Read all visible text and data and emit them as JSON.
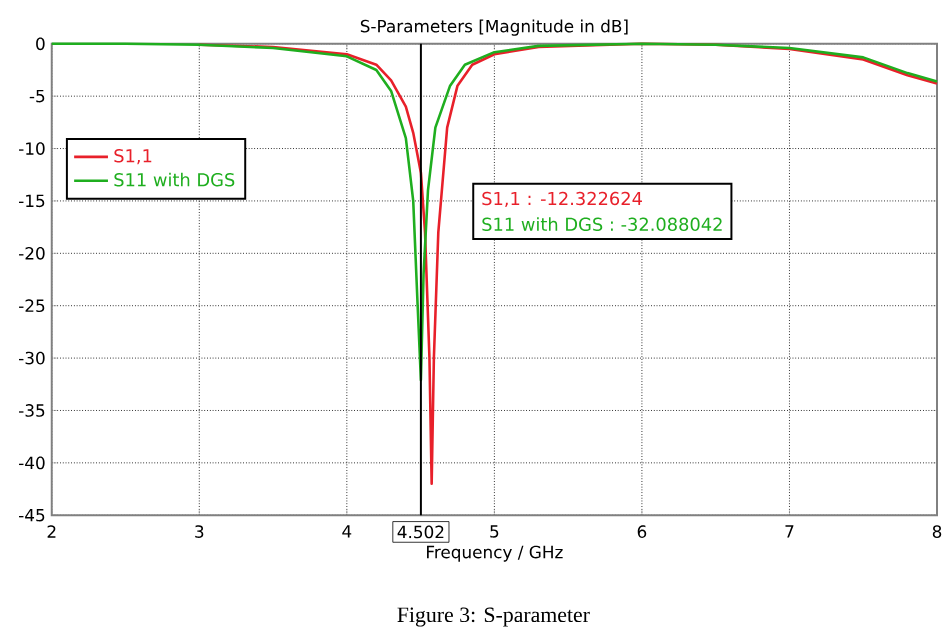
{
  "chart_data": {
    "type": "line",
    "title": "S-Parameters [Magnitude in dB]",
    "xlabel": "Frequency / GHz",
    "xlim": [
      2,
      8
    ],
    "ylim": [
      -45,
      0
    ],
    "xticks": [
      2,
      3,
      4,
      5,
      6,
      7,
      8
    ],
    "yticks": [
      0,
      -5,
      -10,
      -15,
      -20,
      -25,
      -30,
      -35,
      -40,
      -45
    ],
    "grid": true,
    "legend": "left",
    "marker": "none",
    "line_style": "solid",
    "series": [
      {
        "name": "S1,1",
        "color": "#e8202a",
        "x": [
          3,
          3.5,
          4,
          4.2,
          4.3,
          4.4,
          4.45,
          4.502,
          4.53,
          4.56,
          4.575,
          4.59,
          4.62,
          4.68,
          4.75,
          4.85,
          5.0,
          5.3,
          6,
          6.5,
          7,
          7.5,
          7.8,
          8
        ],
        "values": [
          -0.1,
          -0.3,
          -1.0,
          -2,
          -3.5,
          -6,
          -8.5,
          -12.3,
          -18,
          -30,
          -42,
          -30,
          -18,
          -8,
          -4,
          -2,
          -1,
          -0.3,
          0,
          -0.1,
          -0.5,
          -1.5,
          -3,
          -3.8
        ]
      },
      {
        "name": "S11 with DGS",
        "color": "#1fae1f",
        "x": [
          2,
          2.5,
          3,
          3.5,
          4,
          4.2,
          4.3,
          4.4,
          4.45,
          4.48,
          4.502,
          4.52,
          4.55,
          4.6,
          4.7,
          4.8,
          5.0,
          5.3,
          6,
          6.5,
          7,
          7.5,
          7.8,
          8
        ],
        "values": [
          0,
          0,
          -0.1,
          -0.4,
          -1.2,
          -2.5,
          -4.5,
          -9,
          -15,
          -25,
          -32.1,
          -22,
          -14,
          -8,
          -4,
          -2,
          -0.8,
          -0.2,
          0,
          -0.1,
          -0.4,
          -1.3,
          -2.8,
          -3.6
        ]
      }
    ],
    "ref_lines": [
      {
        "axis": "x",
        "value": 4.502,
        "label": "4.502",
        "color": "#000000"
      }
    ],
    "annotations": [
      "S1,1 : -12.322624",
      "S11 with DGS : -32.088042",
      "Figure 3: S-parameter"
    ]
  }
}
